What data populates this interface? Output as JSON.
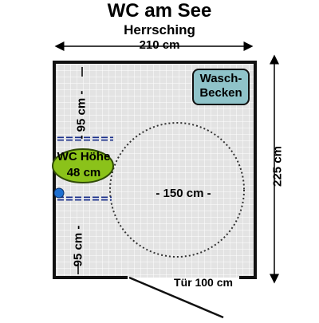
{
  "title": "WC am See",
  "subtitle": "Herrsching",
  "dimensions": {
    "width": "210 cm",
    "height": "225 cm",
    "left_top": "- 95 cm -",
    "left_bottom": "95 cm -",
    "turning_circle": "- 150 cm -",
    "door": "Tür 100 cm"
  },
  "fixtures": {
    "sink_line1": "Wasch-",
    "sink_line2": "Becken",
    "wc_line1": "WC Höhe",
    "wc_line2": "48 cm"
  },
  "colors": {
    "floor": "#e3e3e3",
    "grid": "#ffffff",
    "wall": "#111111",
    "wc_fill": "#8bc21a",
    "sink_fill": "#8fc3c9",
    "grab_bar": "#1a2f8a",
    "flush_button": "#1e6fd0"
  }
}
